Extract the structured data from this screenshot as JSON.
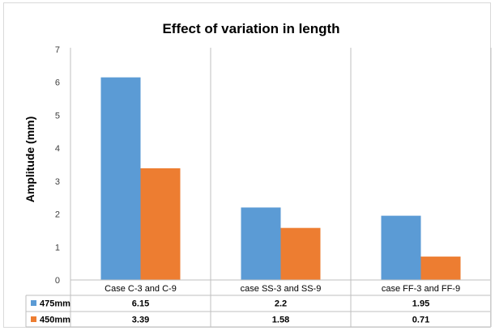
{
  "chart_data": {
    "type": "bar",
    "title": "Effect of variation in length",
    "xlabel": "",
    "ylabel": "Amplitude (mm)",
    "ylim": [
      0,
      7
    ],
    "yticks": [
      0,
      1,
      2,
      3,
      4,
      5,
      6,
      7
    ],
    "categories": [
      "Case C-3 and C-9",
      "case SS-3 and SS-9",
      "case FF-3 and FF-9"
    ],
    "series": [
      {
        "name": "475mm",
        "color": "#5B9BD5",
        "values": [
          6.15,
          2.2,
          1.95
        ],
        "labels": [
          "6.15",
          "2.2",
          "1.95"
        ]
      },
      {
        "name": "450mm",
        "color": "#ED7D31",
        "values": [
          3.39,
          1.58,
          0.71
        ],
        "labels": [
          "3.39",
          "1.58",
          "0.71"
        ]
      }
    ],
    "grid": false,
    "legend": "data-table"
  }
}
